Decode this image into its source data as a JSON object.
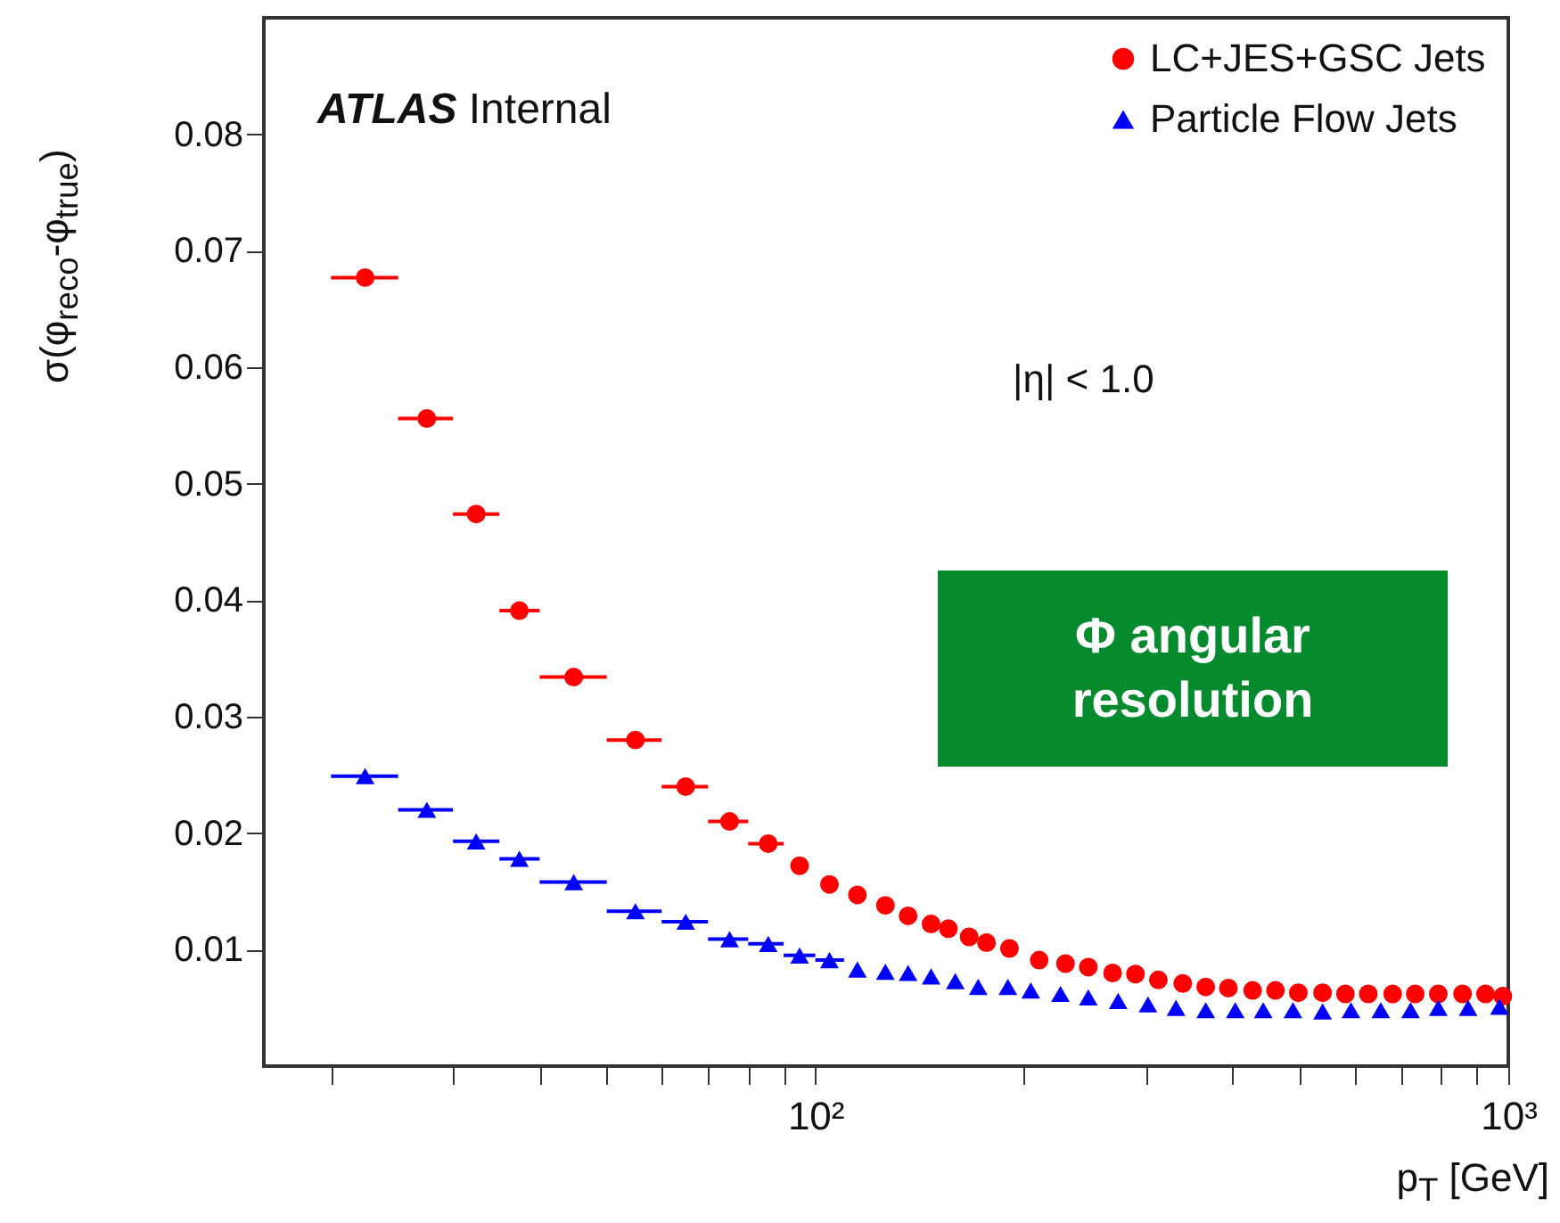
{
  "chart_data": {
    "type": "scatter",
    "xlabel": "p$_{T}$ [GeV]",
    "ylabel": "σ(φ$_{reco}$-φ$_{true}$)",
    "annotations": [
      "ATLAS Internal",
      "|η| < 1.0",
      "Φ angular resolution"
    ],
    "log": "x",
    "xlim": [
      16,
      1000
    ],
    "ylim": [
      0,
      0.09
    ],
    "xticks": [
      {
        "value": 20,
        "label": null
      },
      {
        "value": 30,
        "label": null
      },
      {
        "value": 40,
        "label": null
      },
      {
        "value": 50,
        "label": null
      },
      {
        "value": 60,
        "label": null
      },
      {
        "value": 70,
        "label": null
      },
      {
        "value": 80,
        "label": null
      },
      {
        "value": 90,
        "label": null
      },
      {
        "value": 100,
        "label": "10²"
      },
      {
        "value": 200,
        "label": null
      },
      {
        "value": 300,
        "label": null
      },
      {
        "value": 400,
        "label": null
      },
      {
        "value": 500,
        "label": null
      },
      {
        "value": 600,
        "label": null
      },
      {
        "value": 700,
        "label": null
      },
      {
        "value": 800,
        "label": null
      },
      {
        "value": 900,
        "label": null
      },
      {
        "value": 1000,
        "label": "10³"
      }
    ],
    "yticks": [
      0.01,
      0.02,
      0.03,
      0.04,
      0.05,
      0.06,
      0.07,
      0.08
    ],
    "legend": "top right",
    "grid": false,
    "series": [
      {
        "name": "LC+JES+GSC Jets",
        "color": "#ff0000",
        "marker": "circle",
        "x": [
          22.4,
          27.5,
          32.4,
          37.4,
          44.8,
          55.0,
          65.0,
          75.2,
          85.5,
          94.9,
          104.8,
          115.0,
          126.2,
          136.1,
          146.9,
          155.6,
          166.7,
          176.6,
          190.6,
          210.4,
          229.6,
          247.7,
          268.5,
          289.7,
          312.6,
          339,
          365.9,
          394.5,
          427.6,
          461.3,
          497.7,
          539.5,
          582,
          628,
          681,
          734,
          792.5,
          859,
          927,
          982
        ],
        "values": [
          0.0677,
          0.0556,
          0.0474,
          0.0391,
          0.0334,
          0.028,
          0.024,
          0.021,
          0.0191,
          0.0172,
          0.0156,
          0.0147,
          0.0138,
          0.0129,
          0.0122,
          0.0118,
          0.0111,
          0.0106,
          0.0101,
          0.0091,
          0.0088,
          0.0085,
          0.008,
          0.0079,
          0.0074,
          0.0071,
          0.0068,
          0.0067,
          0.0065,
          0.0065,
          0.0063,
          0.0063,
          0.0062,
          0.0062,
          0.0062,
          0.0062,
          0.0062,
          0.0062,
          0.0062,
          0.006
        ],
        "xerrors": [
          [
            20,
            25
          ],
          [
            25,
            30
          ],
          [
            30,
            35
          ],
          [
            35,
            40
          ],
          [
            40,
            50
          ],
          [
            50,
            60
          ],
          [
            60,
            70
          ],
          [
            70,
            80
          ],
          [
            80,
            90
          ],
          null,
          null,
          null,
          null,
          null,
          null,
          null,
          null,
          null,
          null,
          null,
          null,
          null,
          null,
          null,
          null,
          null,
          null,
          null,
          null,
          null,
          null,
          null,
          null,
          null,
          null,
          null,
          null,
          null,
          null,
          null
        ]
      },
      {
        "name": "Particle Flow Jets",
        "color": "#0000ff",
        "marker": "triangle",
        "x": [
          22.4,
          27.5,
          32.4,
          37.4,
          44.8,
          55.0,
          65.0,
          75.2,
          85.5,
          94.9,
          104.8,
          115.0,
          126.2,
          136.1,
          146.9,
          159.2,
          171.8,
          189.6,
          204.6,
          225.8,
          247.7,
          273.5,
          302.0,
          331.5,
          365.9,
          403.6,
          442.9,
          488.9,
          539.5,
          592.9,
          654.6,
          722.8,
          792.5,
          875,
          971
        ],
        "values": [
          0.0249,
          0.022,
          0.0193,
          0.0178,
          0.0158,
          0.0133,
          0.0124,
          0.0109,
          0.0105,
          0.0095,
          0.0091,
          0.0083,
          0.0081,
          0.008,
          0.0077,
          0.0073,
          0.0068,
          0.0068,
          0.0065,
          0.0062,
          0.0059,
          0.0056,
          0.0053,
          0.005,
          0.0048,
          0.0048,
          0.0048,
          0.0048,
          0.0047,
          0.0048,
          0.0048,
          0.0048,
          0.005,
          0.005,
          0.0051
        ],
        "xerrors": [
          [
            20,
            25
          ],
          [
            25,
            30
          ],
          [
            30,
            35
          ],
          [
            35,
            40
          ],
          [
            40,
            50
          ],
          [
            50,
            60
          ],
          [
            60,
            70
          ],
          [
            70,
            80
          ],
          [
            80,
            90
          ],
          [
            90,
            100
          ],
          [
            100,
            110
          ],
          null,
          null,
          null,
          null,
          null,
          null,
          null,
          null,
          null,
          null,
          null,
          null,
          null,
          null,
          null,
          null,
          null,
          null,
          null,
          null,
          null,
          null,
          null,
          null
        ]
      }
    ]
  }
}
